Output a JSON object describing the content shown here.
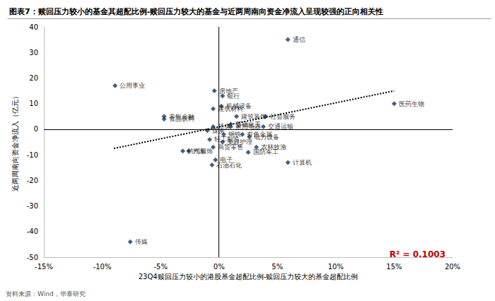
{
  "chart_data": {
    "type": "scatter",
    "title": "图表7：赎回压力较小的基金其超配比例-赎回压力较大的基金与近两周南向资金净流入呈现较强的正向相关性",
    "x_label": "23Q4赎回压力较小的港股基金超配比例-赎回压力较大的基金超配比例",
    "y_label": "近两周南向资金净流入（亿元）",
    "source": "资料来源：Wind，华泰研究",
    "annotation": "R² = 0.1003",
    "labels": [
      "通信",
      "医药生物",
      "公用事业",
      "传媒",
      "计算机",
      "银行",
      "房地产",
      "机械设备",
      "建筑材料",
      "非银金融",
      "食品饮料",
      "社会服务",
      "建筑装饰",
      "环保",
      "煤炭",
      "基础化工",
      "家用电器",
      "交通运输",
      "有色金属",
      "电力设备",
      "钢铁",
      "轻工制造",
      "美容护理",
      "商贸零售",
      "农林牧渔",
      "纺织服饰",
      "汽车",
      "电子",
      "国防军工",
      "石油石化"
    ],
    "x": [
      5.9,
      15.0,
      -8.9,
      -7.6,
      5.9,
      0.3,
      -0.4,
      0.2,
      -0.5,
      -4.7,
      -4.7,
      4.0,
      1.5,
      -0.5,
      -1.0,
      1.0,
      1.0,
      3.8,
      2.0,
      2.6,
      0.4,
      -0.8,
      0.3,
      -0.5,
      3.2,
      -3.1,
      -2.6,
      -0.3,
      2.5,
      -0.6
    ],
    "y": [
      35,
      10,
      17,
      -44,
      -13,
      13,
      15,
      9,
      8,
      5,
      4,
      5,
      5,
      1,
      -0.5,
      2,
      1,
      1,
      -2,
      -3,
      -2,
      -4,
      -5,
      -7,
      -7,
      -8.5,
      -8.5,
      -12,
      -9,
      -14
    ],
    "color": "#17375E",
    "marker": "diamond",
    "trendline": {
      "x": [
        -9,
        15
      ],
      "y": [
        -7.5,
        15
      ],
      "line_style": "dotted",
      "color": "#000000"
    },
    "xlim": [
      -15,
      20
    ],
    "xticks": [
      {
        "value": -15,
        "label": "-15%"
      },
      {
        "value": -10,
        "label": "-10%"
      },
      {
        "value": -5,
        "label": "-5%"
      },
      {
        "value": 0,
        "label": "0%"
      },
      {
        "value": 5,
        "label": "5%"
      },
      {
        "value": 10,
        "label": "10%"
      },
      {
        "value": 15,
        "label": "15%"
      },
      {
        "value": 20,
        "label": "20%"
      }
    ],
    "ylim": [
      -50,
      40
    ],
    "yticks": [
      -50,
      -40,
      -30,
      -20,
      -10,
      0,
      10,
      20,
      30,
      40
    ],
    "grid": false
  }
}
